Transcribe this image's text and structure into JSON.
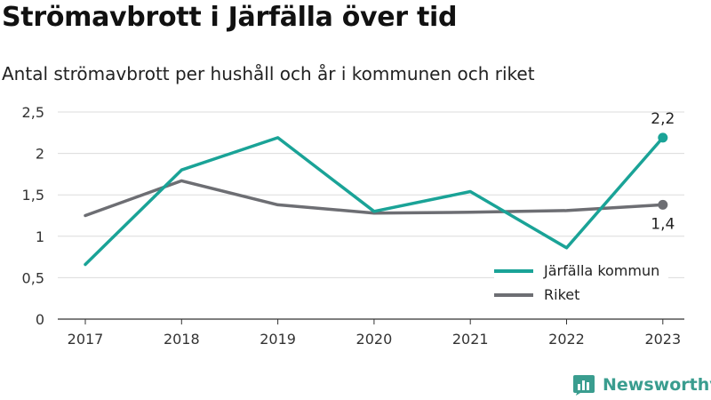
{
  "header": {
    "title": "Strömavbrott i Järfälla över tid",
    "subtitle": "Antal strömavbrott per hushåll och år i kommunen och riket"
  },
  "brand": {
    "name": "Newsworthy",
    "color": "#3a9d8f"
  },
  "chart_data": {
    "type": "line",
    "title": "Strömavbrott i Järfälla över tid",
    "subtitle": "Antal strömavbrott per hushåll och år i kommunen och riket",
    "x": [
      "2017",
      "2018",
      "2019",
      "2020",
      "2021",
      "2022",
      "2023"
    ],
    "yticks": [
      0,
      0.5,
      1,
      1.5,
      2,
      2.5
    ],
    "ytick_labels": [
      "0",
      "0,5",
      "1",
      "1,5",
      "2",
      "2,5"
    ],
    "ylim": [
      0,
      2.5
    ],
    "grid": true,
    "legend_position": "bottom-right",
    "series": [
      {
        "name": "Järfälla kommun",
        "color": "#1aa397",
        "values": [
          0.66,
          1.8,
          2.19,
          1.3,
          1.54,
          0.86,
          2.19
        ],
        "end_label": "2,2"
      },
      {
        "name": "Riket",
        "color": "#6d6e73",
        "values": [
          1.25,
          1.67,
          1.38,
          1.28,
          1.29,
          1.31,
          1.38
        ],
        "end_label": "1,4"
      }
    ]
  }
}
